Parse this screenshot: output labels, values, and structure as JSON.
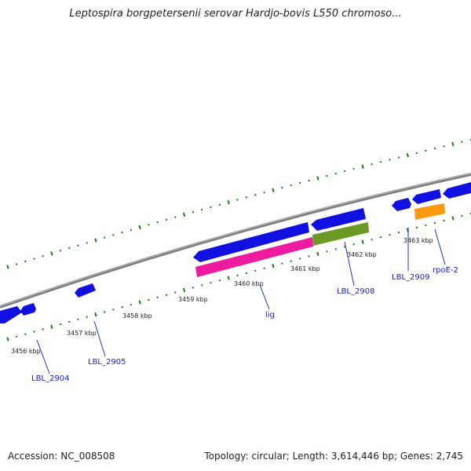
{
  "title": "Leptospira borgpetersenii serovar Hardjo-bovis L550 chromoso...",
  "footer": {
    "accession": "Accession: NC_008508",
    "summary": "Topology: circular; Length: 3,614,446 bp; Genes: 2,745"
  },
  "colors": {
    "backbone": "#7d7d7d",
    "tick": "#1e7a1e",
    "gene_cds": "#1010e0",
    "gene_lig": "#ee1aa0",
    "gene_lbl2908": "#6a9a24",
    "gene_rpoE2": "#ff9910",
    "label": "#1a1ad0"
  },
  "kbp_labels": [
    {
      "id": "3456",
      "text": "3456 kbp"
    },
    {
      "id": "3457",
      "text": "3457 kbp"
    },
    {
      "id": "3458",
      "text": "3458 kbp"
    },
    {
      "id": "3459",
      "text": "3459 kbp"
    },
    {
      "id": "3460",
      "text": "3460 kbp"
    },
    {
      "id": "3461",
      "text": "3461 kbp"
    },
    {
      "id": "3462",
      "text": "3462 kbp"
    },
    {
      "id": "3463",
      "text": "3463 kbp"
    }
  ],
  "genes": [
    {
      "id": "LBL_2904",
      "label": "LBL_2904"
    },
    {
      "id": "LBL_2905",
      "label": "LBL_2905"
    },
    {
      "id": "lig",
      "label": "lig"
    },
    {
      "id": "LBL_2908",
      "label": "LBL_2908"
    },
    {
      "id": "LBL_2909",
      "label": "LBL_2909"
    },
    {
      "id": "rpoE-2",
      "label": "rpoE-2"
    }
  ]
}
